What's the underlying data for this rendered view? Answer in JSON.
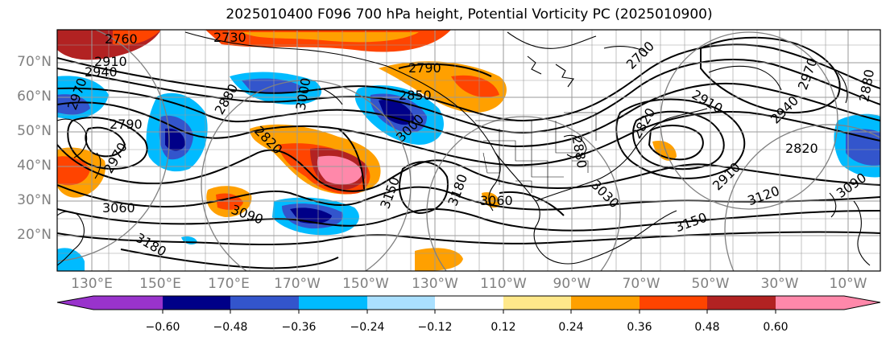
{
  "title": "2025010400 F096 700 hPa height, Potential Vorticity PC (2025010900)",
  "latitude_labels": [
    "70°N",
    "60°N",
    "50°N",
    "40°N",
    "30°N",
    "20°N"
  ],
  "longitude_labels": [
    "130°E",
    "150°E",
    "170°E",
    "170°W",
    "150°W",
    "130°W",
    "110°W",
    "90°W",
    "70°W",
    "50°W",
    "30°W",
    "10°W"
  ],
  "contour_labels": [
    "2760",
    "2730",
    "2910",
    "2940",
    "2970",
    "2790",
    "2880",
    "2820",
    "3060",
    "3180",
    "2850",
    "2790",
    "3090",
    "3000",
    "2970",
    "3150",
    "3180",
    "3000",
    "3060",
    "2700",
    "2910",
    "2940",
    "2970",
    "2880",
    "3030",
    "2820",
    "3120",
    "3150",
    "3090",
    "2910",
    "2880",
    "2820"
  ],
  "colorbar": {
    "tick_labels": [
      "−0.60",
      "−0.48",
      "−0.36",
      "−0.24",
      "−0.12",
      "0.12",
      "0.24",
      "0.36",
      "0.48",
      "0.60"
    ],
    "colors": [
      "#9933cc",
      "#000088",
      "#3355cc",
      "#00bbff",
      "#aae0ff",
      "#ffffff",
      "#ffe88a",
      "#ffa000",
      "#ff4400",
      "#b22222",
      "#ff88aa"
    ]
  }
}
